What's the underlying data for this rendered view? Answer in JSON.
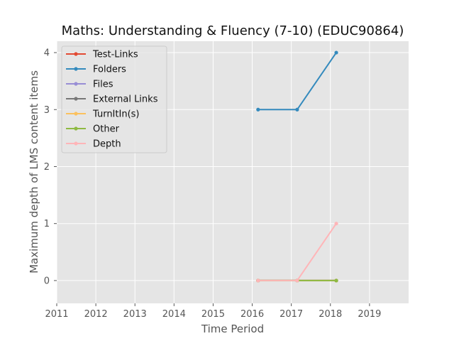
{
  "chart_data": {
    "type": "line",
    "title": "Maths: Understanding & Fluency (7-10) (EDUC90864)",
    "xlabel": "Time Period",
    "ylabel": "Maximum depth of LMS content items",
    "xlim": [
      2011,
      2020
    ],
    "ylim": [
      -0.4,
      4.2
    ],
    "xticks": [
      "2011",
      "2012",
      "2013",
      "2014",
      "2015",
      "2016",
      "2017",
      "2018",
      "2019"
    ],
    "yticks": [
      "0",
      "1",
      "2",
      "3",
      "4"
    ],
    "grid": true,
    "legend_position": "upper-left",
    "x": [
      2016.15,
      2017.15,
      2018.15
    ],
    "series": [
      {
        "name": "Test-Links",
        "color": "#E24A33",
        "values": [
          0,
          0,
          0
        ]
      },
      {
        "name": "Folders",
        "color": "#348ABD",
        "values": [
          3,
          3,
          4
        ]
      },
      {
        "name": "Files",
        "color": "#988ED5",
        "values": [
          0,
          0,
          0
        ]
      },
      {
        "name": "External Links",
        "color": "#777777",
        "values": [
          0,
          0,
          0
        ]
      },
      {
        "name": "TurnItIn(s)",
        "color": "#FBC15E",
        "values": [
          0,
          0,
          0
        ]
      },
      {
        "name": "Other",
        "color": "#8EBA42",
        "values": [
          0,
          0,
          0
        ]
      },
      {
        "name": "Depth",
        "color": "#FFB5B8",
        "values": [
          0,
          0,
          1
        ]
      }
    ]
  }
}
